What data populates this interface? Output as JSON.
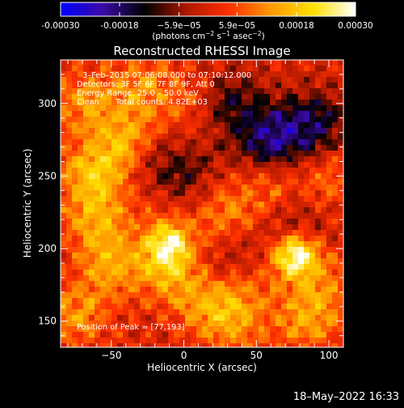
{
  "colorbar": {
    "tick_labels": [
      "-0.00030",
      "-0.00018",
      "−5.9e−05",
      "5.9e−05",
      "0.00018",
      "0.00030"
    ],
    "tick_values": [
      -0.0003,
      -0.00018,
      -5.9e-05,
      5.9e-05,
      0.00018,
      0.0003
    ],
    "range": [
      -0.0003,
      0.0003
    ],
    "units_base": "(photons cm",
    "units_exp1": "−2",
    "units_mid": " s",
    "units_exp2": "−1",
    "units_tail": " asec",
    "units_exp3": "−2",
    "units_close": ")"
  },
  "chart_data": {
    "type": "heatmap",
    "title": "Reconstructed RHESSI Image",
    "xlabel": "Heliocentric X (arcsec)",
    "ylabel": "Heliocentric Y (arcsec)",
    "xlim": [
      -85,
      110
    ],
    "ylim": [
      132,
      330
    ],
    "x_ticks": [
      -50,
      0,
      50,
      100
    ],
    "y_ticks": [
      150,
      200,
      250,
      300
    ],
    "colormap": "rhessi-blue-black-red-yellow-white",
    "colormap_stops": [
      "#0000ff",
      "#3a0aa8",
      "#000000",
      "#b01800",
      "#ff3000",
      "#ff9a00",
      "#ffe000",
      "#ffffff"
    ],
    "annotations": {
      "time_range": "3–Feb–2015 07:06:08.000 to 07:10:12.000",
      "detectors": "Detectors: 3F 5F 6F 7F 8F 9F, Att 0",
      "energy_range": "Energy Range: 25.0 – 50.0 keV",
      "method": "Clean",
      "total_counts": "Total counts: 4.82E+03",
      "peak": "Position of Peak = [77,193]"
    },
    "peak_position": [
      77,
      193
    ],
    "sources": [
      {
        "x": 77,
        "y": 196,
        "value": 0.0003
      },
      {
        "x": -10,
        "y": 203,
        "value": 0.00024
      },
      {
        "x": -12,
        "y": 183,
        "value": 0.00012
      },
      {
        "x": -40,
        "y": 270,
        "value": 0.00016
      },
      {
        "x": -65,
        "y": 250,
        "value": 0.00015
      },
      {
        "x": -30,
        "y": 310,
        "value": 0.00013
      },
      {
        "x": -70,
        "y": 300,
        "value": 0.00012
      },
      {
        "x": 25,
        "y": 225,
        "value": 0.00012
      },
      {
        "x": 35,
        "y": 150,
        "value": 0.00012
      },
      {
        "x": 15,
        "y": 165,
        "value": 0.00011
      },
      {
        "x": 85,
        "y": 150,
        "value": 0.00012
      },
      {
        "x": 60,
        "y": 240,
        "value": 9e-05
      },
      {
        "x": 100,
        "y": 250,
        "value": 8e-05
      },
      {
        "x": 95,
        "y": 175,
        "value": 9e-05
      },
      {
        "x": -75,
        "y": 155,
        "value": 0.00012
      },
      {
        "x": -50,
        "y": 190,
        "value": 0.00013
      },
      {
        "x": -60,
        "y": 220,
        "value": 0.00012
      },
      {
        "x": 10,
        "y": 300,
        "value": 8e-05
      },
      {
        "x": 45,
        "y": 180,
        "value": 9e-05
      },
      {
        "x": -15,
        "y": 240,
        "value": 8e-05
      }
    ],
    "negative_regions": [
      {
        "x": 60,
        "y": 275,
        "value": -0.00018
      },
      {
        "x": 90,
        "y": 285,
        "value": -0.00016
      },
      {
        "x": 30,
        "y": 300,
        "value": -0.00014
      },
      {
        "x": 35,
        "y": 190,
        "value": -0.0001
      },
      {
        "x": -20,
        "y": 255,
        "value": -0.00013
      },
      {
        "x": 5,
        "y": 245,
        "value": -0.0001
      },
      {
        "x": 75,
        "y": 215,
        "value": -9e-05
      }
    ]
  },
  "footer": {
    "timestamp": "18–May–2022 16:33"
  }
}
